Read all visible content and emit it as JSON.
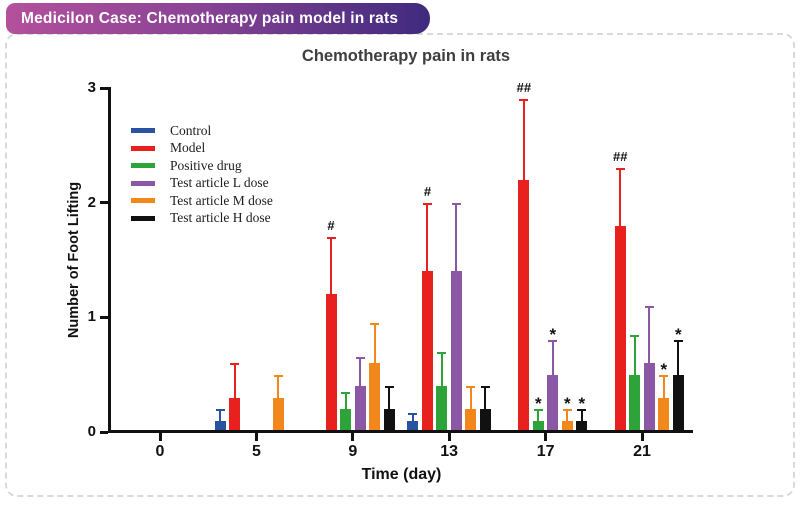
{
  "header": {
    "badge_label": "Medicilon Case: Chemotherapy pain model in rats",
    "gradient_start": "#b3509c",
    "gradient_end": "#3f2a7e"
  },
  "chart_data": {
    "type": "bar",
    "title": "Chemotherapy pain in rats",
    "xlabel": "Time (day)",
    "ylabel": "Number of Foot Lifting",
    "categories": [
      "0",
      "5",
      "9",
      "13",
      "17",
      "21"
    ],
    "ylim": [
      0,
      3
    ],
    "yticks": [
      0,
      1,
      2,
      3
    ],
    "grid": false,
    "legend_position": "upper-left-inside",
    "axis_color": "#111111",
    "series": [
      {
        "name": "Control",
        "color": "#2953a1",
        "values": [
          0,
          0.1,
          0,
          0.1,
          0,
          0
        ],
        "errors_upper": [
          0,
          0.1,
          0,
          0.07,
          0,
          0
        ],
        "annotations": [
          "",
          "",
          "",
          "",
          "",
          ""
        ]
      },
      {
        "name": "Model",
        "color": "#e8201e",
        "values": [
          0,
          0.3,
          1.2,
          1.4,
          2.2,
          1.8
        ],
        "errors_upper": [
          0,
          0.3,
          0.5,
          0.6,
          0.7,
          0.5
        ],
        "annotations": [
          "",
          "",
          "#",
          "#",
          "##",
          "##"
        ]
      },
      {
        "name": "Positive drug",
        "color": "#2ea33a",
        "values": [
          0,
          0,
          0.2,
          0.4,
          0.1,
          0.5
        ],
        "errors_upper": [
          0,
          0,
          0.15,
          0.3,
          0.1,
          0.35
        ],
        "annotations": [
          "",
          "",
          "",
          "",
          "*",
          ""
        ]
      },
      {
        "name": "Test article L dose",
        "color": "#8c57a5",
        "values": [
          0,
          0,
          0.4,
          1.4,
          0.5,
          0.6
        ],
        "errors_upper": [
          0,
          0,
          0.25,
          0.6,
          0.3,
          0.5
        ],
        "annotations": [
          "",
          "",
          "",
          "",
          "*",
          ""
        ]
      },
      {
        "name": "Test article M dose",
        "color": "#f2871c",
        "values": [
          0,
          0.3,
          0.6,
          0.2,
          0.1,
          0.3
        ],
        "errors_upper": [
          0,
          0.2,
          0.35,
          0.2,
          0.1,
          0.2
        ],
        "annotations": [
          "",
          "",
          "",
          "",
          "*",
          "*"
        ]
      },
      {
        "name": "Test article H dose",
        "color": "#111111",
        "values": [
          0,
          0,
          0.2,
          0.2,
          0.1,
          0.5
        ],
        "errors_upper": [
          0,
          0,
          0.2,
          0.2,
          0.1,
          0.3
        ],
        "annotations": [
          "",
          "",
          "",
          "",
          "*",
          "*"
        ]
      }
    ]
  }
}
